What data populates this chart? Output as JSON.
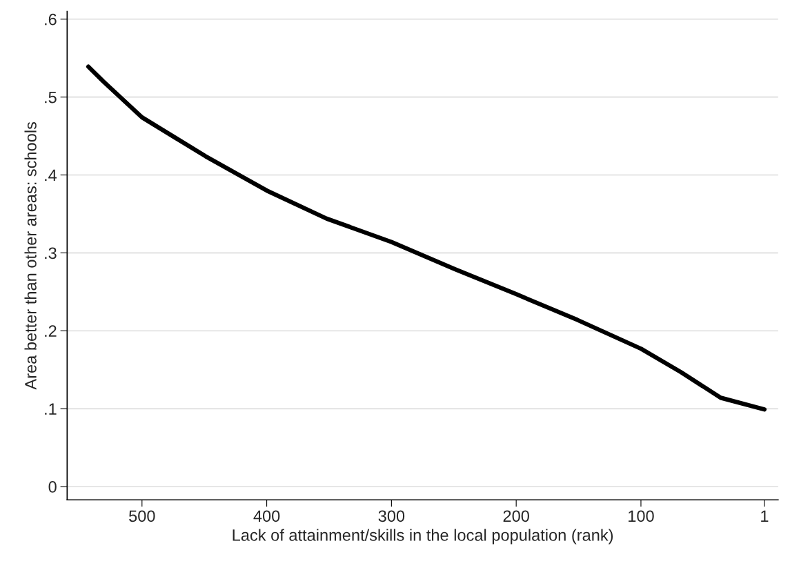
{
  "chart_data": {
    "type": "line",
    "xlabel": "Lack of attainment/skills in the local population (rank)",
    "ylabel": "Area better than other areas: schools",
    "xlim": [
      560,
      -10
    ],
    "xticks": [
      500,
      400,
      300,
      200,
      100,
      1
    ],
    "ylim": [
      -0.017,
      0.61
    ],
    "yticks": [
      {
        "value": 0,
        "label": "0"
      },
      {
        "value": 0.1,
        "label": ".1"
      },
      {
        "value": 0.2,
        "label": ".2"
      },
      {
        "value": 0.3,
        "label": ".3"
      },
      {
        "value": 0.4,
        "label": ".4"
      },
      {
        "value": 0.5,
        "label": ".5"
      },
      {
        "value": 0.6,
        "label": ".6"
      }
    ],
    "grid": "y",
    "marker": "none",
    "line_style": "solid",
    "series": [
      {
        "color": "#000000",
        "x": [
          543,
          531,
          500,
          449,
          400,
          352,
          300,
          249,
          200,
          151,
          100,
          68,
          36,
          1
        ],
        "values": [
          0.539,
          0.52,
          0.474,
          0.424,
          0.38,
          0.344,
          0.314,
          0.279,
          0.247,
          0.214,
          0.177,
          0.147,
          0.114,
          0.099
        ]
      }
    ]
  }
}
